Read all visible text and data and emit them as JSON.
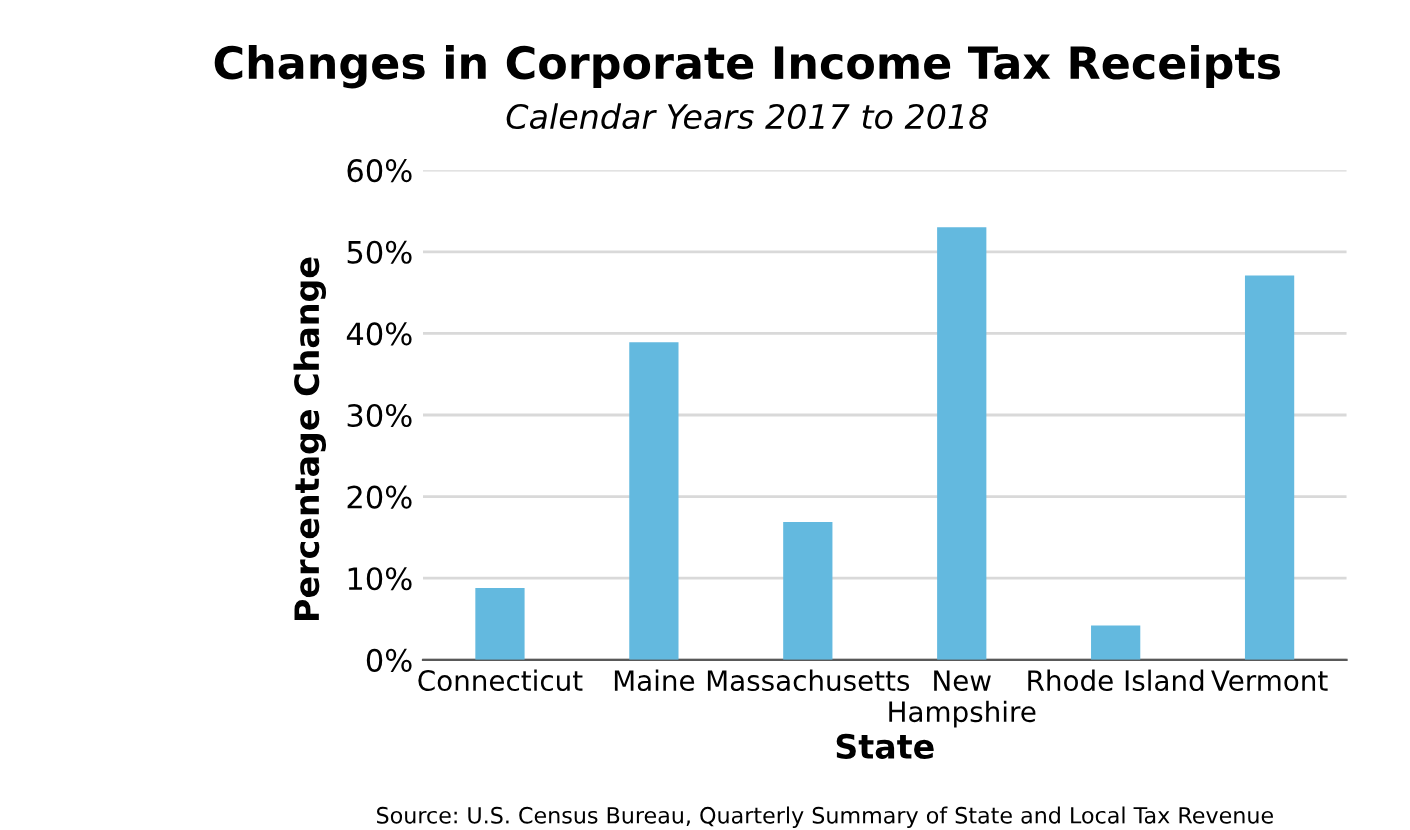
{
  "chart_data": {
    "type": "bar",
    "title": "Changes in Corporate Income Tax Receipts",
    "subtitle": "Calendar Years 2017 to 2018",
    "xlabel": "State",
    "ylabel": "Percentage Change",
    "categories": [
      "Connecticut",
      "Maine",
      "Massachusetts",
      "New\nHampshire",
      "Rhode Island",
      "Vermont"
    ],
    "values": [
      8.8,
      38.9,
      16.9,
      53.0,
      4.2,
      47.1
    ],
    "color": "#63b9df",
    "ylim": [
      0,
      60
    ],
    "yticks": [
      {
        "value": 0,
        "label": "0%"
      },
      {
        "value": 10,
        "label": "10%"
      },
      {
        "value": 20,
        "label": "20%"
      },
      {
        "value": 30,
        "label": "30%"
      },
      {
        "value": 40,
        "label": "40%"
      },
      {
        "value": 50,
        "label": "50%"
      },
      {
        "value": 60,
        "label": "60%"
      }
    ],
    "grid": "y",
    "annotations": [
      "Source: U.S. Census Bureau, Quarterly Summary of State and Local Tax Revenue"
    ]
  }
}
